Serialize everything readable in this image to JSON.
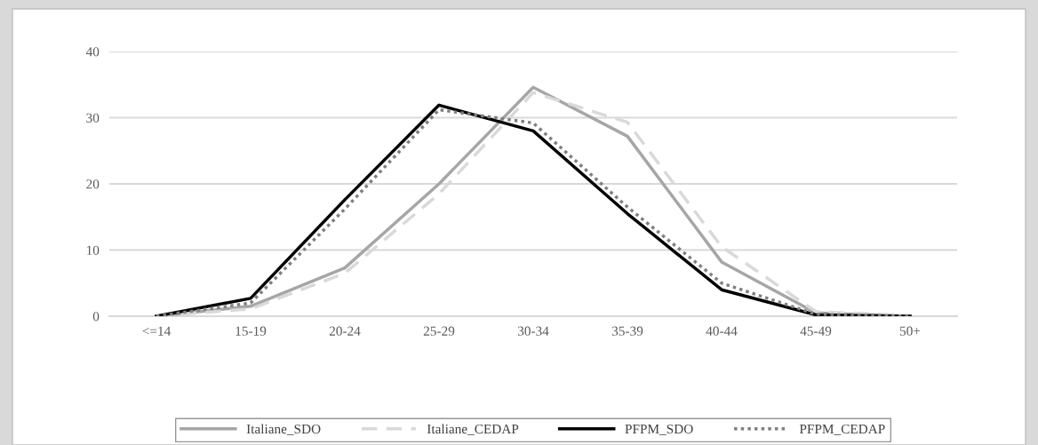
{
  "chart_data": {
    "type": "line",
    "categories": [
      "<=14",
      "15-19",
      "20-24",
      "25-29",
      "30-34",
      "35-39",
      "40-44",
      "45-49",
      "50+"
    ],
    "series": [
      {
        "name": "Italiane_SDO",
        "color": "#a6a6a6",
        "line_style": "solid",
        "values": [
          0,
          1.5,
          7.3,
          20.0,
          34.6,
          27.2,
          8.2,
          0.5,
          0
        ]
      },
      {
        "name": "Italiane_CEDAP",
        "color": "#d9d9d9",
        "line_style": "dashed",
        "values": [
          0,
          1.1,
          6.5,
          18.5,
          33.8,
          29.3,
          10.5,
          0.7,
          0.1
        ]
      },
      {
        "name": "PFPM_SDO",
        "color": "#000000",
        "line_style": "solid",
        "values": [
          0,
          2.7,
          17.6,
          31.9,
          28.0,
          15.5,
          4.0,
          0.2,
          0
        ]
      },
      {
        "name": "PFPM_CEDAP",
        "color": "#7f7f7f",
        "line_style": "dotted",
        "values": [
          0,
          2.0,
          16.2,
          31.2,
          29.2,
          16.5,
          5.0,
          0.3,
          0
        ]
      }
    ],
    "ylim": [
      0,
      40
    ],
    "yticks": [
      0,
      10,
      20,
      30,
      40
    ],
    "grid": "y",
    "legend": "bottom",
    "marker": "none"
  }
}
